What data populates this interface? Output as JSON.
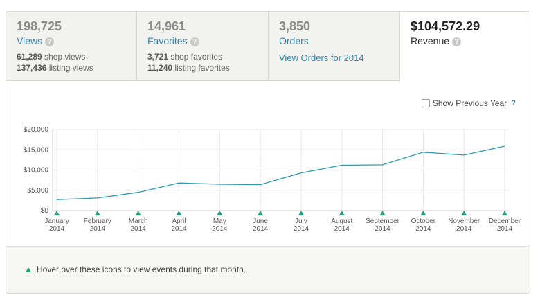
{
  "tabs": {
    "views": {
      "number": "198,725",
      "label": "Views",
      "sub1_num": "61,289",
      "sub1_text": "shop views",
      "sub2_num": "137,436",
      "sub2_text": "listing views"
    },
    "favorites": {
      "number": "14,961",
      "label": "Favorites",
      "sub1_num": "3,721",
      "sub1_text": "shop favorites",
      "sub2_num": "11,240",
      "sub2_text": "listing favorites"
    },
    "orders": {
      "number": "3,850",
      "label": "Orders",
      "link": "View Orders for 2014"
    },
    "revenue": {
      "number": "$104,572.29",
      "label": "Revenue"
    }
  },
  "help_glyph": "?",
  "show_previous_year": {
    "label": "Show Previous Year",
    "help": "?",
    "checked": false
  },
  "footer": {
    "hint": "Hover over these icons to view events during that month."
  },
  "colors": {
    "line": "#2a9bb0",
    "event_marker": "#2b9d78",
    "link": "#2a84b5"
  },
  "chart_data": {
    "type": "line",
    "title": "",
    "xlabel": "",
    "ylabel": "",
    "ylim": [
      0,
      20000
    ],
    "y_ticks": [
      0,
      5000,
      10000,
      15000,
      20000
    ],
    "y_tick_labels": [
      "$0",
      "$5,000",
      "$10,000",
      "$15,000",
      "$20,000"
    ],
    "categories": [
      [
        "January",
        "2014"
      ],
      [
        "February",
        "2014"
      ],
      [
        "March",
        "2014"
      ],
      [
        "April",
        "2014"
      ],
      [
        "May",
        "2014"
      ],
      [
        "June",
        "2014"
      ],
      [
        "July",
        "2014"
      ],
      [
        "August",
        "2014"
      ],
      [
        "September",
        "2014"
      ],
      [
        "October",
        "2014"
      ],
      [
        "November",
        "2014"
      ],
      [
        "December",
        "2014"
      ]
    ],
    "series": [
      {
        "values": [
          2700,
          3100,
          4500,
          6800,
          6500,
          6400,
          9300,
          11200,
          11300,
          14400,
          13700,
          15900
        ]
      }
    ],
    "grid": true,
    "event_markers": true
  }
}
